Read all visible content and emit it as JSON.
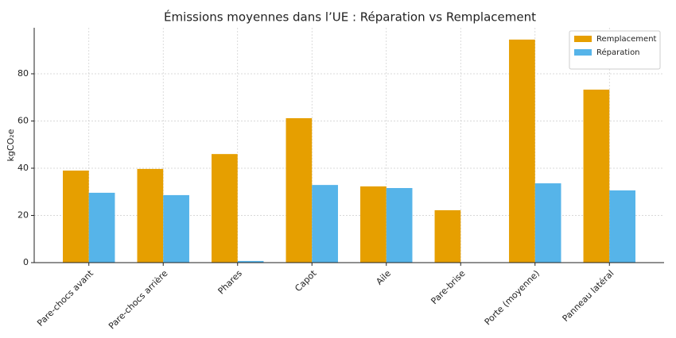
{
  "chart_data": {
    "type": "bar",
    "title": "Émissions moyennes dans l’UE : Réparation vs Remplacement",
    "y_label": "kgCO₂e",
    "categories": [
      "Pare-chocs avant",
      "Pare-chocs arrière",
      "Phares",
      "Capot",
      "Aile",
      "Pare-brise",
      "Porte (moyenne)",
      "Panneau latéral"
    ],
    "series": [
      {
        "name": "Remplacement",
        "color": "#E69F00",
        "values": [
          39.0,
          39.7,
          46.0,
          61.2,
          32.3,
          22.2,
          94.5,
          73.3
        ]
      },
      {
        "name": "Réparation",
        "color": "#56B4E9",
        "values": [
          29.6,
          28.6,
          0.7,
          32.9,
          31.6,
          0,
          33.6,
          30.6
        ]
      }
    ],
    "ylim": [
      0,
      99.5
    ],
    "yticks": [
      0,
      20,
      40,
      60,
      80
    ],
    "grid": true,
    "legend": "upper right"
  }
}
